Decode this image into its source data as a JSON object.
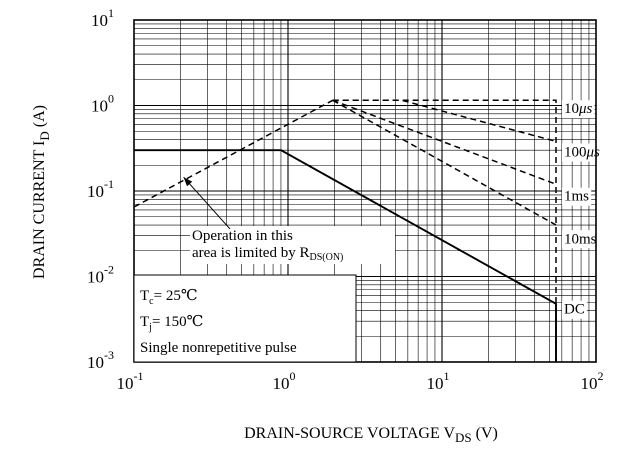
{
  "chart_data": {
    "type": "line",
    "xscale": "log",
    "yscale": "log",
    "xlim": [
      0.1,
      100
    ],
    "ylim": [
      0.001,
      10
    ],
    "grid": true,
    "x_ticks": [
      {
        "base": "10",
        "exp": "-1",
        "value": 0.1
      },
      {
        "base": "10",
        "exp": "0",
        "value": 1
      },
      {
        "base": "10",
        "exp": "1",
        "value": 10
      },
      {
        "base": "10",
        "exp": "2",
        "value": 100
      }
    ],
    "y_ticks": [
      {
        "base": "10",
        "exp": "-3",
        "value": 0.001
      },
      {
        "base": "10",
        "exp": "-2",
        "value": 0.01
      },
      {
        "base": "10",
        "exp": "-1",
        "value": 0.1
      },
      {
        "base": "10",
        "exp": "0",
        "value": 1
      },
      {
        "base": "10",
        "exp": "1",
        "value": 10
      }
    ],
    "xlabel": {
      "main": "DRAIN-SOURCE VOLTAGE V",
      "sub": "DS",
      "unit": " (V)"
    },
    "ylabel": {
      "main": "DRAIN CURRENT I",
      "sub": "D",
      "unit": " (A)"
    },
    "rds_limit": {
      "x": [
        0.1,
        1.95
      ],
      "y": [
        0.065,
        1.15
      ]
    },
    "series": [
      {
        "name": "10 μs",
        "style": "dashed",
        "x": [
          1.95,
          55,
          55
        ],
        "y": [
          1.15,
          1.15,
          0.001
        ]
      },
      {
        "name": "100 μs",
        "style": "dashed",
        "x": [
          1.95,
          5.5,
          55
        ],
        "y": [
          1.15,
          1.15,
          0.38
        ]
      },
      {
        "name": "1ms",
        "style": "dashed",
        "x": [
          1.95,
          55
        ],
        "y": [
          1.15,
          0.12
        ]
      },
      {
        "name": "10ms",
        "style": "dashed",
        "x": [
          1.95,
          55
        ],
        "y": [
          1.15,
          0.04
        ]
      },
      {
        "name": "DC",
        "style": "solid",
        "x": [
          0.1,
          0.9,
          55,
          55
        ],
        "y": [
          0.3,
          0.3,
          0.0048,
          0.001
        ]
      }
    ],
    "curve_labels": [
      {
        "name": "10",
        "unit": "μs",
        "x": 62,
        "y": 0.93
      },
      {
        "name": "100",
        "unit": "μs",
        "x": 62,
        "y": 0.29
      },
      {
        "name": "1ms",
        "unit": "",
        "x": 62,
        "y": 0.088
      },
      {
        "name": "10ms",
        "unit": "",
        "x": 62,
        "y": 0.028
      },
      {
        "name": "DC",
        "unit": "",
        "x": 62,
        "y": 0.0042
      }
    ],
    "annotation": {
      "line1": "Operation in this",
      "line2": "area is limited by R",
      "line2_sub": "DS(ON)",
      "pointer_from": {
        "x": 0.42,
        "y": 0.036
      },
      "pointer_to": {
        "x": 0.21,
        "y": 0.145
      }
    },
    "conditions": [
      {
        "main": "T",
        "sub": "c",
        "rest": "= 25℃"
      },
      {
        "main": "T",
        "sub": "j",
        "rest": "= 150℃"
      },
      {
        "main": "Single nonrepetitive pulse",
        "sub": "",
        "rest": ""
      }
    ]
  }
}
